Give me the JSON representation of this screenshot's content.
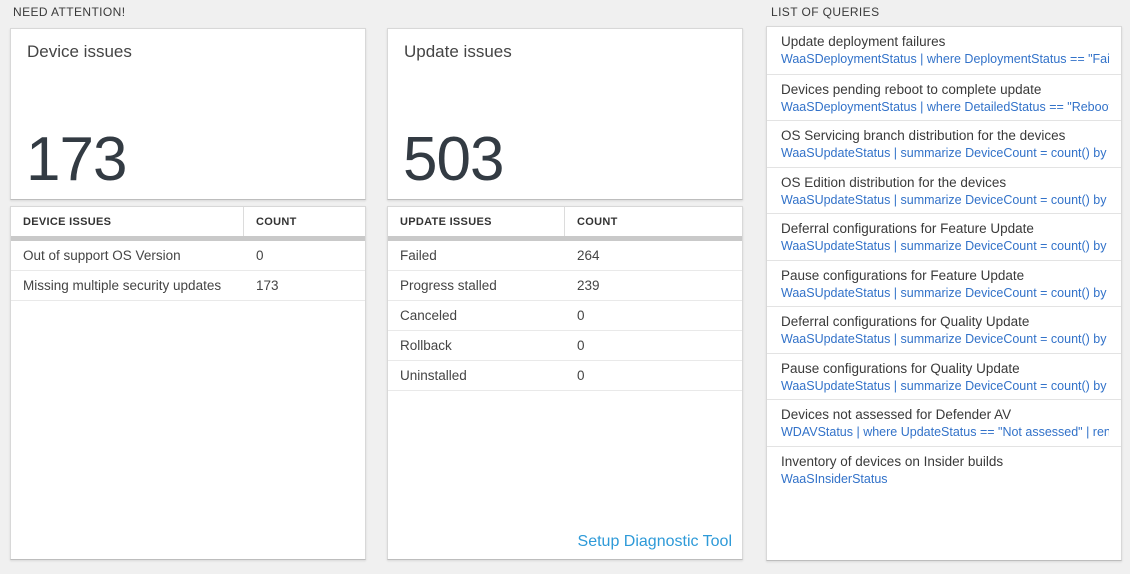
{
  "colors": {
    "page_background": "#f0f0f0",
    "card_background": "#ffffff",
    "big_number_color": "#333b43",
    "query_link_blue": "#3272c9",
    "setup_link_blue": "#2e9ad8",
    "thick_divider_gray": "#c9c9c9"
  },
  "need_attention": {
    "header": "NEED ATTENTION!",
    "device_card": {
      "title": "Device issues",
      "value": "173"
    },
    "update_card": {
      "title": "Update issues",
      "value": "503"
    },
    "device_table": {
      "col_issue": "DEVICE ISSUES",
      "col_count": "COUNT",
      "rows": [
        {
          "issue": "Out of support OS Version",
          "count": "0"
        },
        {
          "issue": "Missing multiple security updates",
          "count": "173"
        }
      ]
    },
    "update_table": {
      "col_issue": "UPDATE ISSUES",
      "col_count": "COUNT",
      "rows": [
        {
          "issue": "Failed",
          "count": "264"
        },
        {
          "issue": "Progress stalled",
          "count": "239"
        },
        {
          "issue": "Canceled",
          "count": "0"
        },
        {
          "issue": "Rollback",
          "count": "0"
        },
        {
          "issue": "Uninstalled",
          "count": "0"
        }
      ]
    },
    "setup_diagnostic_link": "Setup Diagnostic Tool"
  },
  "query_list": {
    "header": "LIST OF QUERIES",
    "items": [
      {
        "title": "Update deployment failures",
        "query": "WaaSDeploymentStatus | where DeploymentStatus == \"Failed\" |..."
      },
      {
        "title": "Devices pending reboot to complete update",
        "query": "WaaSDeploymentStatus | where DetailedStatus == \"Reboot pend..."
      },
      {
        "title": "OS Servicing branch distribution for the devices",
        "query": "WaaSUpdateStatus | summarize DeviceCount = count() by OSSer..."
      },
      {
        "title": "OS Edition distribution for the devices",
        "query": "WaaSUpdateStatus | summarize DeviceCount = count() by OSEdit..."
      },
      {
        "title": "Deferral configurations for Feature Update",
        "query": "WaaSUpdateStatus | summarize DeviceCount = count() by Featur..."
      },
      {
        "title": "Pause configurations for Feature Update",
        "query": "WaaSUpdateStatus | summarize DeviceCount = count() by Featur..."
      },
      {
        "title": "Deferral configurations for Quality Update",
        "query": "WaaSUpdateStatus | summarize DeviceCount = count() by Qualit..."
      },
      {
        "title": "Pause configurations for Quality Update",
        "query": "WaaSUpdateStatus | summarize DeviceCount = count() by Qualit..."
      },
      {
        "title": "Devices not assessed for Defender AV",
        "query": "WDAVStatus | where UpdateStatus == \"Not assessed\" | render ta..."
      },
      {
        "title": "Inventory of devices on Insider builds",
        "query": "WaaSInsiderStatus"
      }
    ]
  }
}
